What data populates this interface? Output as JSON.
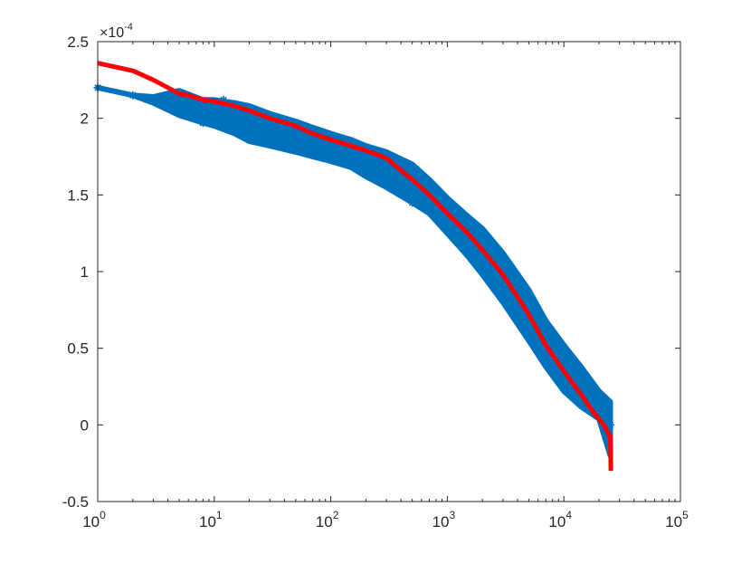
{
  "chart_data": {
    "type": "scatter",
    "xscale": "log",
    "xlim": [
      1,
      100000
    ],
    "ylim": [
      -0.5,
      2.5
    ],
    "y_multiplier_label": "×10",
    "y_multiplier_exponent": "-4",
    "x_ticks": [
      {
        "value": 1,
        "base": "10",
        "exp": "0"
      },
      {
        "value": 10,
        "base": "10",
        "exp": "1"
      },
      {
        "value": 100,
        "base": "10",
        "exp": "2"
      },
      {
        "value": 1000,
        "base": "10",
        "exp": "3"
      },
      {
        "value": 10000,
        "base": "10",
        "exp": "4"
      },
      {
        "value": 100000,
        "base": "10",
        "exp": "5"
      }
    ],
    "y_ticks": [
      {
        "value": 2.5,
        "label": "2.5"
      },
      {
        "value": 2,
        "label": "2"
      },
      {
        "value": 1.5,
        "label": "1.5"
      },
      {
        "value": 1,
        "label": "1"
      },
      {
        "value": 0.5,
        "label": "0.5"
      },
      {
        "value": 0,
        "label": "0"
      },
      {
        "value": -0.5,
        "label": "-0.5"
      }
    ],
    "grid": false,
    "series": [
      {
        "kind": "scatter",
        "marker": "*",
        "color": "#0072BD",
        "points": [
          [
            1,
            2.2
          ],
          [
            2,
            2.15
          ],
          [
            3,
            2.12
          ],
          [
            4,
            2.13
          ],
          [
            5,
            2.17
          ],
          [
            6,
            2.05
          ],
          [
            7,
            2.05
          ],
          [
            8,
            1.97
          ],
          [
            9,
            2.0
          ],
          [
            10,
            2.1
          ],
          [
            12,
            2.12
          ],
          [
            14,
            2.05
          ],
          [
            16,
            2.0
          ],
          [
            20,
            1.95
          ],
          [
            25,
            1.92
          ],
          [
            30,
            1.9
          ],
          [
            40,
            1.85
          ],
          [
            60,
            1.82
          ],
          [
            100,
            1.78
          ],
          [
            200,
            1.72
          ],
          [
            300,
            1.72
          ],
          [
            500,
            1.45
          ],
          [
            1000,
            1.35
          ],
          [
            2000,
            1.12
          ],
          [
            3000,
            0.95
          ],
          [
            5000,
            0.7
          ],
          [
            8000,
            0.45
          ],
          [
            12000,
            0.3
          ],
          [
            20000,
            0.15
          ],
          [
            25000,
            0.0
          ]
        ],
        "band": [
          [
            1,
            2.2,
            2.2
          ],
          [
            2,
            2.15,
            2.15
          ],
          [
            3,
            2.1,
            2.14
          ],
          [
            5,
            2.02,
            2.18
          ],
          [
            8,
            1.97,
            2.12
          ],
          [
            10,
            1.95,
            2.12
          ],
          [
            15,
            1.9,
            2.1
          ],
          [
            20,
            1.85,
            2.08
          ],
          [
            30,
            1.82,
            2.03
          ],
          [
            50,
            1.78,
            1.98
          ],
          [
            70,
            1.75,
            1.94
          ],
          [
            100,
            1.72,
            1.9
          ],
          [
            150,
            1.68,
            1.86
          ],
          [
            200,
            1.62,
            1.82
          ],
          [
            300,
            1.55,
            1.78
          ],
          [
            500,
            1.45,
            1.7
          ],
          [
            700,
            1.38,
            1.6
          ],
          [
            1000,
            1.25,
            1.48
          ],
          [
            1500,
            1.1,
            1.36
          ],
          [
            2000,
            0.98,
            1.28
          ],
          [
            3000,
            0.8,
            1.12
          ],
          [
            5000,
            0.55,
            0.88
          ],
          [
            7000,
            0.38,
            0.68
          ],
          [
            10000,
            0.22,
            0.52
          ],
          [
            14000,
            0.12,
            0.38
          ],
          [
            20000,
            0.04,
            0.22
          ],
          [
            25000,
            -0.2,
            0.15
          ]
        ]
      },
      {
        "kind": "line",
        "color": "#FF0000",
        "points": [
          [
            1,
            2.36
          ],
          [
            2,
            2.31
          ],
          [
            3,
            2.25
          ],
          [
            4,
            2.2
          ],
          [
            5,
            2.16
          ],
          [
            6,
            2.15
          ],
          [
            8,
            2.12
          ],
          [
            10,
            2.11
          ],
          [
            15,
            2.08
          ],
          [
            20,
            2.05
          ],
          [
            30,
            2.0
          ],
          [
            50,
            1.95
          ],
          [
            70,
            1.9
          ],
          [
            100,
            1.86
          ],
          [
            150,
            1.82
          ],
          [
            200,
            1.79
          ],
          [
            300,
            1.74
          ],
          [
            500,
            1.6
          ],
          [
            700,
            1.5
          ],
          [
            1000,
            1.38
          ],
          [
            1500,
            1.25
          ],
          [
            2000,
            1.14
          ],
          [
            3000,
            0.98
          ],
          [
            5000,
            0.72
          ],
          [
            7000,
            0.52
          ],
          [
            10000,
            0.35
          ],
          [
            14000,
            0.2
          ],
          [
            18000,
            0.08
          ],
          [
            22000,
            0.0
          ],
          [
            25000,
            -0.08
          ],
          [
            25200,
            -0.2
          ],
          [
            25300,
            -0.3
          ]
        ]
      }
    ]
  }
}
